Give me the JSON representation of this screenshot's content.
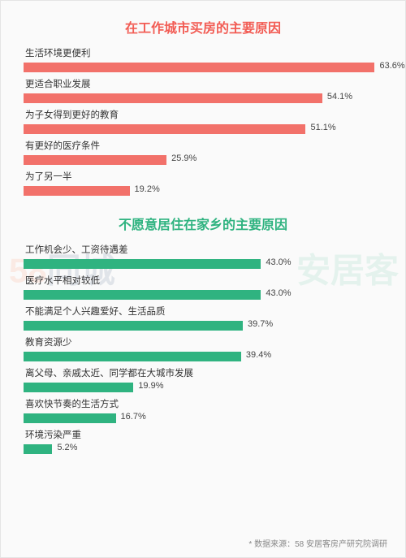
{
  "scale_max": 65,
  "chart1": {
    "title": "在工作城市买房的主要原因",
    "title_color": "#f25c54",
    "bar_color": "#f2716a",
    "items": [
      {
        "label": "生活环境更便利",
        "value": 63.6
      },
      {
        "label": "更适合职业发展",
        "value": 54.1
      },
      {
        "label": "为子女得到更好的教育",
        "value": 51.1
      },
      {
        "label": "有更好的医疗条件",
        "value": 25.9
      },
      {
        "label": "为了另一半",
        "value": 19.2
      }
    ]
  },
  "chart2": {
    "title": "不愿意居住在家乡的主要原因",
    "title_color": "#2fb380",
    "bar_color": "#2fb380",
    "items": [
      {
        "label": "工作机会少、工资待遇差",
        "value": 43.0
      },
      {
        "label": "医疗水平相对较低",
        "value": 43.0
      },
      {
        "label": "不能满足个人兴趣爱好、生活品质",
        "value": 39.7
      },
      {
        "label": "教育资源少",
        "value": 39.4
      },
      {
        "label": "离父母、亲戚太近、同学都在大城市发展",
        "value": 19.9
      },
      {
        "label": "喜欢快节奏的生活方式",
        "value": 16.7
      },
      {
        "label": "环境污染严重",
        "value": 5.2
      }
    ]
  },
  "source_note": "* 数据来源：58 安居客房产研究院调研",
  "watermark_left_a": "58",
  "watermark_left_b": "同城",
  "watermark_right": "安居客"
}
